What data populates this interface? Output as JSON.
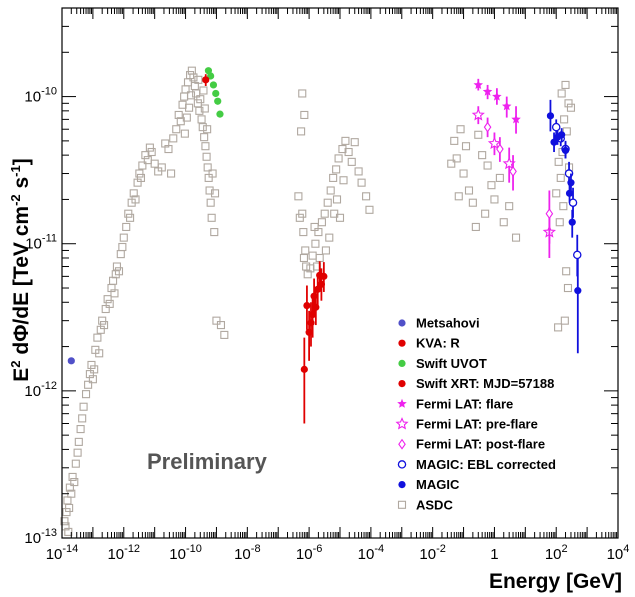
{
  "chart_data": {
    "type": "scatter",
    "xlabel": "Energy [GeV]",
    "ylabel_parts": {
      "e": "E",
      "e_sup": "2",
      "dphi": " dΦ/dE [TeV cm",
      "cm_sup": "-2",
      "s": " s",
      "s_sup": "-1",
      "close": "]"
    },
    "x_scale": "log",
    "y_scale": "log",
    "xlim": [
      1e-14,
      10000.0
    ],
    "ylim": [
      1e-13,
      4e-10
    ],
    "x_ticks": [
      {
        "value": 1e-14,
        "base": "10",
        "exp": "-14"
      },
      {
        "value": 1e-12,
        "base": "10",
        "exp": "-12"
      },
      {
        "value": 1e-10,
        "base": "10",
        "exp": "-10"
      },
      {
        "value": 1e-08,
        "base": "10",
        "exp": "-8"
      },
      {
        "value": 1e-06,
        "base": "10",
        "exp": "-6"
      },
      {
        "value": 0.0001,
        "base": "10",
        "exp": "-4"
      },
      {
        "value": 0.01,
        "base": "10",
        "exp": "-2"
      },
      {
        "value": 1,
        "base": "1",
        "exp": ""
      },
      {
        "value": 100.0,
        "base": "10",
        "exp": "2"
      },
      {
        "value": 10000.0,
        "base": "10",
        "exp": "4"
      }
    ],
    "y_ticks": [
      {
        "value": 1e-13,
        "base": "10",
        "exp": "-13"
      },
      {
        "value": 1e-12,
        "base": "10",
        "exp": "-12"
      },
      {
        "value": 1e-11,
        "base": "10",
        "exp": "-11"
      },
      {
        "value": 1e-10,
        "base": "10",
        "exp": "-10"
      }
    ],
    "annotation": "Preliminary",
    "grid": false,
    "legend_position": "lower-right",
    "series": [
      {
        "name": "Metsahovi",
        "marker": "circle-filled",
        "color": "#5050c8",
        "points": [
          [
            2e-14,
            1.6e-12
          ]
        ]
      },
      {
        "name": "KVA: R",
        "marker": "circle-filled",
        "color": "#e00000",
        "points": []
      },
      {
        "name": "Swift UVOT",
        "marker": "circle-filled",
        "color": "#44cc44",
        "points": [
          [
            5.5e-10,
            1.5e-10
          ],
          [
            6.5e-10,
            1.38e-10
          ],
          [
            8e-10,
            1.2e-10
          ],
          [
            9.5e-10,
            1.05e-10
          ],
          [
            1.1e-09,
            9.3e-11
          ],
          [
            1.3e-09,
            7.6e-11
          ]
        ]
      },
      {
        "name": "Swift XRT: MJD=57188",
        "marker": "circle-filled",
        "color": "#e00000",
        "points": [
          [
            4.5e-10,
            1.3e-10,
            1.18e-10,
            1.42e-10
          ],
          [
            7e-07,
            1.4e-12,
            6e-13,
            2.3e-12
          ],
          [
            8.5e-07,
            3.8e-12,
            2.6e-12,
            5.2e-12
          ],
          [
            1e-06,
            2.5e-12,
            1.6e-12,
            3.5e-12
          ],
          [
            1.15e-06,
            2.9e-12,
            2e-12,
            4e-12
          ],
          [
            1.3e-06,
            3.3e-12,
            2.3e-12,
            4.5e-12
          ],
          [
            1.45e-06,
            4.4e-12,
            3.2e-12,
            5.8e-12
          ],
          [
            1.65e-06,
            3.7e-12,
            2.8e-12,
            4.8e-12
          ],
          [
            1.9e-06,
            4.9e-12,
            3.7e-12,
            6.3e-12
          ],
          [
            2.2e-06,
            6.1e-12,
            4.8e-12,
            7.6e-12
          ],
          [
            2.5e-06,
            5.3e-12,
            4.1e-12,
            6.8e-12
          ],
          [
            3e-06,
            6e-12,
            4.7e-12,
            7.5e-12
          ]
        ]
      },
      {
        "name": "Fermi LAT: flare",
        "marker": "star-filled",
        "color": "#ee22ee",
        "points": [
          [
            0.3,
            1.2e-10,
            1.1e-10,
            1.32e-10
          ],
          [
            0.6,
            1.08e-10,
            9.6e-11,
            1.2e-10
          ],
          [
            1.2,
            1e-10,
            8.8e-11,
            1.14e-10
          ],
          [
            2.5,
            8.6e-11,
            7.2e-11,
            1e-10
          ],
          [
            5,
            7e-11,
            5.6e-11,
            8.6e-11
          ]
        ]
      },
      {
        "name": "Fermi LAT: pre-flare",
        "marker": "star-open",
        "color": "#ee22ee",
        "points": [
          [
            0.3,
            7.5e-11,
            6.5e-11,
            8.6e-11
          ],
          [
            1,
            4.8e-11,
            4e-11,
            5.7e-11
          ],
          [
            3,
            3.5e-11,
            2.6e-11,
            4.5e-11
          ],
          [
            60,
            1.2e-11,
            8e-12,
            1.7e-11
          ]
        ]
      },
      {
        "name": "Fermi LAT: post-flare",
        "marker": "diamond-open",
        "color": "#ee22ee",
        "points": [
          [
            0.6,
            6.2e-11,
            5.3e-11,
            7.2e-11
          ],
          [
            1.5,
            4.4e-11,
            3.6e-11,
            5.3e-11
          ],
          [
            4,
            3.1e-11,
            2.3e-11,
            4e-11
          ],
          [
            60,
            1.6e-11,
            1e-11,
            2.3e-11
          ]
        ]
      },
      {
        "name": "MAGIC: EBL corrected",
        "marker": "circle-open",
        "color": "#1010dd",
        "points": [
          [
            100,
            6.2e-11,
            5.4e-11,
            7e-11
          ],
          [
            140,
            5.2e-11,
            4.6e-11,
            5.8e-11
          ],
          [
            200,
            4.4e-11,
            3.8e-11,
            5e-11
          ],
          [
            260,
            3e-11,
            2.5e-11,
            3.6e-11
          ],
          [
            350,
            1.9e-11,
            1.5e-11,
            2.4e-11
          ],
          [
            480,
            8.4e-12,
            6e-12,
            1.15e-11
          ]
        ]
      },
      {
        "name": "MAGIC",
        "marker": "circle-filled",
        "color": "#1010dd",
        "points": [
          [
            65,
            7.4e-11,
            5.8e-11,
            9.5e-11
          ],
          [
            85,
            4.9e-11,
            4.2e-11,
            5.7e-11
          ],
          [
            110,
            5.3e-11,
            4.7e-11,
            5.9e-11
          ],
          [
            150,
            5.5e-11,
            4.9e-11,
            6.1e-11
          ],
          [
            200,
            4.3e-11,
            3.8e-11,
            4.9e-11
          ],
          [
            270,
            2.2e-11,
            1.9e-11,
            2.6e-11
          ],
          [
            300,
            2.6e-11,
            2.2e-11,
            3e-11
          ],
          [
            330,
            1.4e-11,
            1.1e-11,
            1.7e-11
          ],
          [
            500,
            4.8e-12,
            1.8e-12,
            8e-12
          ]
        ]
      },
      {
        "name": "ASDC",
        "marker": "square-open",
        "color": "#b0a8a0",
        "points": [
          [
            1.2e-14,
            1.3e-13
          ],
          [
            1.4e-14,
            1.5e-13
          ],
          [
            1.5e-14,
            1.8e-13
          ],
          [
            1.7e-14,
            1.6e-13
          ],
          [
            1.8e-14,
            2.2e-13
          ],
          [
            2e-14,
            2e-13
          ],
          [
            2.2e-14,
            2.6e-13
          ],
          [
            2.5e-14,
            2.4e-13
          ],
          [
            1.6e-14,
            1.1e-13
          ],
          [
            1.3e-14,
            1.2e-13
          ],
          [
            2.8e-14,
            3.2e-13
          ],
          [
            3.2e-14,
            3.8e-13
          ],
          [
            3.5e-14,
            4.5e-13
          ],
          [
            4e-14,
            5.5e-13
          ],
          [
            4.5e-14,
            6.5e-13
          ],
          [
            5e-14,
            7.8e-13
          ],
          [
            6e-14,
            9.5e-13
          ],
          [
            7e-14,
            1.1e-12
          ],
          [
            8e-14,
            1.3e-12
          ],
          [
            9e-14,
            1.5e-12
          ],
          [
            1e-13,
            1.2e-12
          ],
          [
            1.1e-13,
            1.4e-12
          ],
          [
            1.2e-13,
            1.9e-12
          ],
          [
            1.4e-13,
            2.3e-12
          ],
          [
            1.6e-13,
            1.8e-12
          ],
          [
            1.8e-13,
            2.6e-12
          ],
          [
            2e-13,
            3e-12
          ],
          [
            2.3e-13,
            2.8e-12
          ],
          [
            2.6e-13,
            3.6e-12
          ],
          [
            3e-13,
            4.2e-12
          ],
          [
            3.5e-13,
            3.9e-12
          ],
          [
            4e-13,
            5e-12
          ],
          [
            4.5e-13,
            5.6e-12
          ],
          [
            5e-13,
            4.6e-12
          ],
          [
            5.5e-13,
            6.2e-12
          ],
          [
            6e-13,
            7e-12
          ],
          [
            7e-13,
            6.5e-12
          ],
          [
            8e-13,
            8.5e-12
          ],
          [
            9e-13,
            9.5e-12
          ],
          [
            1e-12,
            1.1e-11
          ],
          [
            1.2e-12,
            1.3e-11
          ],
          [
            1.4e-12,
            1.6e-11
          ],
          [
            1.6e-12,
            1.5e-11
          ],
          [
            1.8e-12,
            1.9e-11
          ],
          [
            2.1e-12,
            2.2e-11
          ],
          [
            2.4e-12,
            2e-11
          ],
          [
            2.8e-12,
            2.6e-11
          ],
          [
            3.2e-12,
            3e-11
          ],
          [
            3.6e-12,
            2.8e-11
          ],
          [
            4e-12,
            3.4e-11
          ],
          [
            5e-12,
            4e-11
          ],
          [
            6e-12,
            3.7e-11
          ],
          [
            7e-12,
            4.5e-11
          ],
          [
            8e-12,
            4.2e-11
          ],
          [
            1e-11,
            3.5e-11
          ],
          [
            1.3e-11,
            3.1e-11
          ],
          [
            1.7e-11,
            3.3e-11
          ],
          [
            2.2e-11,
            4.8e-11
          ],
          [
            2.8e-11,
            4.4e-11
          ],
          [
            3.4e-11,
            3e-11
          ],
          [
            4e-11,
            5.2e-11
          ],
          [
            5e-11,
            6e-11
          ],
          [
            6e-11,
            7.5e-11
          ],
          [
            7e-11,
            6.8e-11
          ],
          [
            8e-11,
            8.8e-11
          ],
          [
            9e-11,
            1e-10
          ],
          [
            1e-10,
            1.12e-10
          ],
          [
            1.2e-10,
            1.25e-10
          ],
          [
            1.4e-10,
            1.4e-10
          ],
          [
            1.6e-10,
            1.5e-10
          ],
          [
            1.8e-10,
            1.35e-10
          ],
          [
            2e-10,
            1.18e-10
          ],
          [
            2.2e-10,
            1.05e-10
          ],
          [
            2.5e-10,
            9e-11
          ],
          [
            2.8e-10,
            8e-11
          ],
          [
            3e-10,
            9.6e-11
          ],
          [
            3.3e-10,
            7e-11
          ],
          [
            3.6e-10,
            6.2e-11
          ],
          [
            4e-10,
            5.3e-11
          ],
          [
            4.4e-10,
            4.6e-11
          ],
          [
            4.8e-10,
            3.9e-11
          ],
          [
            5.2e-10,
            3.3e-11
          ],
          [
            5.6e-10,
            2.8e-11
          ],
          [
            6e-10,
            2.3e-11
          ],
          [
            6.5e-10,
            1.9e-11
          ],
          [
            7e-10,
            1.5e-11
          ],
          [
            7.5e-10,
            3e-11
          ],
          [
            5e-10,
            6e-11
          ],
          [
            4.2e-10,
            8.3e-11
          ],
          [
            3.8e-10,
            1.1e-10
          ],
          [
            2.6e-10,
            1.3e-10
          ],
          [
            1.5e-10,
            1.02e-10
          ],
          [
            1.3e-10,
            8.4e-11
          ],
          [
            1.1e-10,
            7.2e-11
          ],
          [
            9.5e-11,
            5.6e-11
          ],
          [
            8.5e-10,
            1.2e-11
          ],
          [
            9e-10,
            2.2e-11
          ],
          [
            1e-09,
            3e-12
          ],
          [
            1.4e-09,
            2.8e-12
          ],
          [
            1.8e-09,
            2.4e-12
          ],
          [
            6e-07,
            1.05e-10
          ],
          [
            7e-07,
            7.5e-11
          ],
          [
            5.5e-07,
            5.8e-11
          ],
          [
            4.5e-07,
            2.1e-11
          ],
          [
            6e-07,
            1.6e-11
          ],
          [
            6.5e-07,
            1.2e-11
          ],
          [
            7.5e-07,
            9e-12
          ],
          [
            5e-07,
            1.5e-11
          ],
          [
            6.8e-07,
            8e-12
          ],
          [
            8e-07,
            7e-12
          ],
          [
            9e-07,
            6.2e-12
          ],
          [
            1.1e-06,
            6.8e-12
          ],
          [
            1.3e-06,
            8.3e-12
          ],
          [
            1.6e-06,
            1e-11
          ],
          [
            2e-06,
            1.2e-11
          ],
          [
            2.6e-06,
            1.4e-11
          ],
          [
            3.2e-06,
            1.6e-11
          ],
          [
            4e-06,
            1.9e-11
          ],
          [
            5e-06,
            2.3e-11
          ],
          [
            6e-06,
            2.8e-11
          ],
          [
            7.5e-06,
            3.2e-11
          ],
          [
            9e-06,
            3.8e-11
          ],
          [
            1.2e-05,
            4.4e-11
          ],
          [
            1.5e-05,
            5e-11
          ],
          [
            1.9e-05,
            4.2e-11
          ],
          [
            2.4e-05,
            3.6e-11
          ],
          [
            3e-05,
            4.9e-11
          ],
          [
            4e-05,
            3.1e-11
          ],
          [
            5e-05,
            2.6e-11
          ],
          [
            7e-05,
            2.1e-11
          ],
          [
            9e-05,
            1.7e-11
          ],
          [
            4.5e-06,
            1.1e-11
          ],
          [
            3.5e-06,
            9e-12
          ],
          [
            2.2e-06,
            8e-12
          ],
          [
            1.8e-06,
            7e-12
          ],
          [
            1.5e-06,
            1.3e-11
          ],
          [
            1e-05,
            1.5e-11
          ],
          [
            8e-06,
            2e-11
          ],
          [
            6.5e-06,
            1.6e-11
          ],
          [
            1.3e-05,
            2.7e-11
          ],
          [
            0.05,
            5e-11
          ],
          [
            0.08,
            6e-11
          ],
          [
            0.12,
            4.6e-11
          ],
          [
            0.06,
            3.8e-11
          ],
          [
            0.1,
            3e-11
          ],
          [
            0.15,
            2.3e-11
          ],
          [
            0.2,
            1.9e-11
          ],
          [
            0.3,
            5.5e-11
          ],
          [
            0.4,
            4e-11
          ],
          [
            0.6,
            3.4e-11
          ],
          [
            0.8,
            2.5e-11
          ],
          [
            1,
            2e-11
          ],
          [
            1.5,
            2.8e-11
          ],
          [
            2,
            1.4e-11
          ],
          [
            3,
            1.8e-11
          ],
          [
            5,
            1.1e-11
          ],
          [
            0.25,
            1.3e-11
          ],
          [
            0.5,
            1.6e-11
          ],
          [
            0.07,
            2.1e-11
          ],
          [
            0.04,
            3.5e-11
          ],
          [
            150,
            1.05e-10
          ],
          [
            200,
            1.2e-10
          ],
          [
            250,
            9e-11
          ],
          [
            300,
            8.4e-11
          ],
          [
            180,
            7e-11
          ],
          [
            220,
            5.8e-11
          ],
          [
            160,
            4.2e-11
          ],
          [
            260,
            3.3e-11
          ],
          [
            120,
            3.6e-11
          ],
          [
            140,
            2.8e-11
          ],
          [
            100,
            2.2e-11
          ],
          [
            170,
            1.8e-11
          ],
          [
            130,
            1.4e-11
          ],
          [
            210,
            6.5e-12
          ],
          [
            240,
            5e-12
          ],
          [
            190,
            3e-12
          ],
          [
            115,
            2.7e-12
          ]
        ]
      }
    ]
  }
}
